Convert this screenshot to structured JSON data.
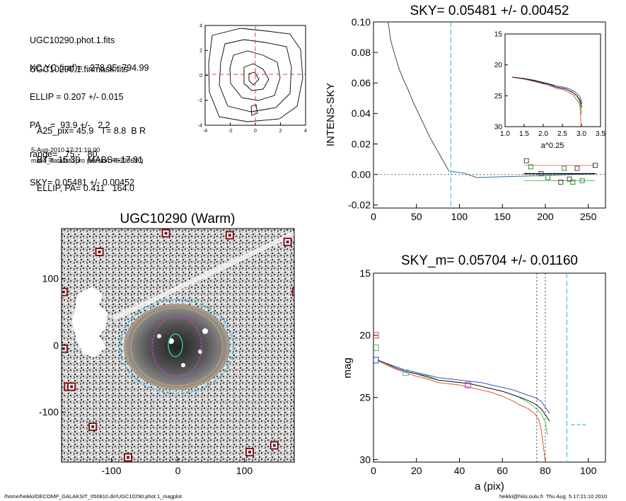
{
  "info": {
    "lines_a": [
      "UGC10290.phot.1.fits",
      "UGC10290.1.finmask.fits"
    ],
    "lines_b": [
      "XC,YC (iraf)=   278.95, 794.99",
      "ELLIP = 0.207 +/- 0.015",
      "PA    =  93.9 +/-   2.2",
      "range=   75.-   80.",
      "SKY= 0.05481 +/- 0.00452"
    ],
    "lines_c": [
      "A25_pix= 45.9   T= 8.8  B R",
      "BT=  15.30   MABS=-17.91",
      "ELLIP, PA= 0.411   164.0"
    ],
    "date": "5-Aug-2010 17:21:10.00",
    "program": "make_datalist0.pro (version HS230610)"
  },
  "footer": {
    "path": "/home/heikki/DECOMP_GALAKSIT_050810.dir/UGC10290.phot.1_magplot",
    "user": "heikki@hiisi.oulu.fi  Thu Aug  5 17:21:10 2010"
  },
  "chart_data": [
    {
      "type": "contour",
      "title": "",
      "x_ticks": [
        "-4",
        "-2",
        "0",
        "2",
        "4"
      ],
      "y_ticks": [
        "4",
        "2",
        "0",
        "-2",
        "-4"
      ],
      "xlim": [
        -4,
        4
      ],
      "ylim": [
        -4,
        4
      ],
      "crosshair": [
        0,
        0
      ]
    },
    {
      "type": "line",
      "title": "SKY= 0.05481 +/- 0.00452",
      "ylabel": "INTENS-SKY",
      "xlim": [
        0,
        270
      ],
      "ylim": [
        -0.022,
        0.1
      ],
      "x_ticks": [
        "0",
        "50",
        "100",
        "150",
        "200",
        "250"
      ],
      "y_ticks": [
        "0.10",
        "0.08",
        "0.06",
        "0.04",
        "0.02",
        "0.00",
        "-0.02"
      ],
      "vline_x": 90,
      "profile_x": [
        17,
        20,
        25,
        30,
        35,
        40,
        45,
        50,
        55,
        60,
        65,
        70,
        75,
        80,
        85,
        88
      ],
      "profile_y": [
        0.1,
        0.088,
        0.078,
        0.069,
        0.062,
        0.056,
        0.049,
        0.043,
        0.037,
        0.031,
        0.025,
        0.02,
        0.015,
        0.01,
        0.005,
        0.002
      ],
      "squares_x": [
        178,
        183,
        195,
        203,
        218,
        222,
        228,
        232,
        237,
        243,
        258
      ],
      "squares_y": [
        0.009,
        0.005,
        0.0005,
        -0.002,
        -0.005,
        0.004,
        -0.003,
        -0.005,
        0.004,
        -0.004,
        0.006
      ],
      "inset": {
        "xlabel": "a^0.25",
        "xlim": [
          1.0,
          3.5
        ],
        "ylim": [
          15,
          30
        ],
        "x_ticks": [
          "1.0",
          "1.5",
          "2.0",
          "2.5",
          "3.0",
          "3.5"
        ],
        "y_ticks": [
          "15",
          "20",
          "25",
          "30"
        ]
      }
    },
    {
      "type": "image",
      "title": "UGC10290 (Warm)",
      "xlim": [
        -175,
        175
      ],
      "ylim": [
        -175,
        175
      ],
      "x_ticks": [
        "-100",
        "0",
        "100"
      ],
      "y_ticks": [
        "100",
        "0",
        "-100"
      ],
      "masked_stars_x": [
        -18,
        78,
        165,
        -118,
        -172,
        178,
        -172,
        -165,
        -160,
        -128,
        -75,
        108,
        145
      ],
      "masked_stars_y": [
        168,
        165,
        155,
        140,
        80,
        80,
        -5,
        -62,
        -62,
        -122,
        -168,
        -160,
        -150
      ]
    },
    {
      "type": "line",
      "title": "SKY_m=  0.05704 +/- 0.01160",
      "xlabel": "a (pix)",
      "ylabel": "mag",
      "xlim": [
        0,
        108
      ],
      "ylim": [
        15,
        30.2
      ],
      "x_ticks": [
        "0",
        "20",
        "40",
        "60",
        "80",
        "100"
      ],
      "y_ticks": [
        "15",
        "20",
        "25",
        "30"
      ],
      "vlines_dotted": [
        76,
        80
      ],
      "vline_dashed": 90,
      "sky_level_mag": 27.2,
      "series": [
        {
          "x": [
            2,
            5,
            10,
            15,
            20,
            25,
            30,
            35,
            40,
            45,
            50,
            55,
            60,
            65,
            68,
            72,
            75,
            77,
            78,
            79,
            80
          ],
          "y": [
            22,
            22.3,
            22.7,
            23.0,
            23.3,
            23.5,
            23.8,
            23.9,
            24.0,
            24.2,
            24.4,
            24.6,
            24.9,
            25.3,
            25.6,
            25.9,
            26.3,
            26.8,
            27.5,
            28.8,
            30.2
          ]
        },
        {
          "x": [
            2,
            5,
            10,
            15,
            20,
            25,
            30,
            35,
            40,
            45,
            50,
            55,
            60,
            65,
            68,
            72,
            75,
            78,
            80,
            81
          ],
          "y": [
            22,
            22.2,
            22.6,
            22.9,
            23.1,
            23.4,
            23.6,
            23.7,
            23.8,
            23.9,
            24.1,
            24.3,
            24.5,
            24.8,
            25.0,
            25.4,
            25.8,
            26.3,
            27.0,
            28.0
          ]
        },
        {
          "x": [
            2,
            5,
            10,
            15,
            20,
            25,
            30,
            35,
            40,
            45,
            50,
            55,
            60,
            65,
            70,
            75,
            78,
            80,
            82
          ],
          "y": [
            22,
            22.2,
            22.5,
            22.8,
            23.0,
            23.2,
            23.4,
            23.5,
            23.6,
            23.7,
            23.8,
            24.0,
            24.2,
            24.4,
            24.7,
            25.0,
            25.3,
            25.8,
            26.3
          ]
        },
        {
          "x": [
            2,
            5,
            10,
            15,
            20,
            25,
            30,
            35,
            40,
            45,
            50,
            55,
            60,
            65,
            70,
            75,
            78,
            80,
            82
          ],
          "y": [
            22,
            22.2,
            22.6,
            22.9,
            23.1,
            23.3,
            23.6,
            23.7,
            23.8,
            23.9,
            24.1,
            24.3,
            24.5,
            24.8,
            25.1,
            25.5,
            25.9,
            26.4,
            26.9
          ]
        }
      ],
      "markers": [
        {
          "x": 1,
          "y": 20.0,
          "color": "#e04020"
        },
        {
          "x": 1,
          "y": 21.0,
          "color": "#40c040"
        },
        {
          "x": 1,
          "y": 22.0,
          "color": "#2040c0"
        },
        {
          "x": 15,
          "y": 23.0,
          "color": "#40c0c0"
        },
        {
          "x": 44,
          "y": 24.0,
          "color": "#c040c0"
        }
      ]
    }
  ]
}
